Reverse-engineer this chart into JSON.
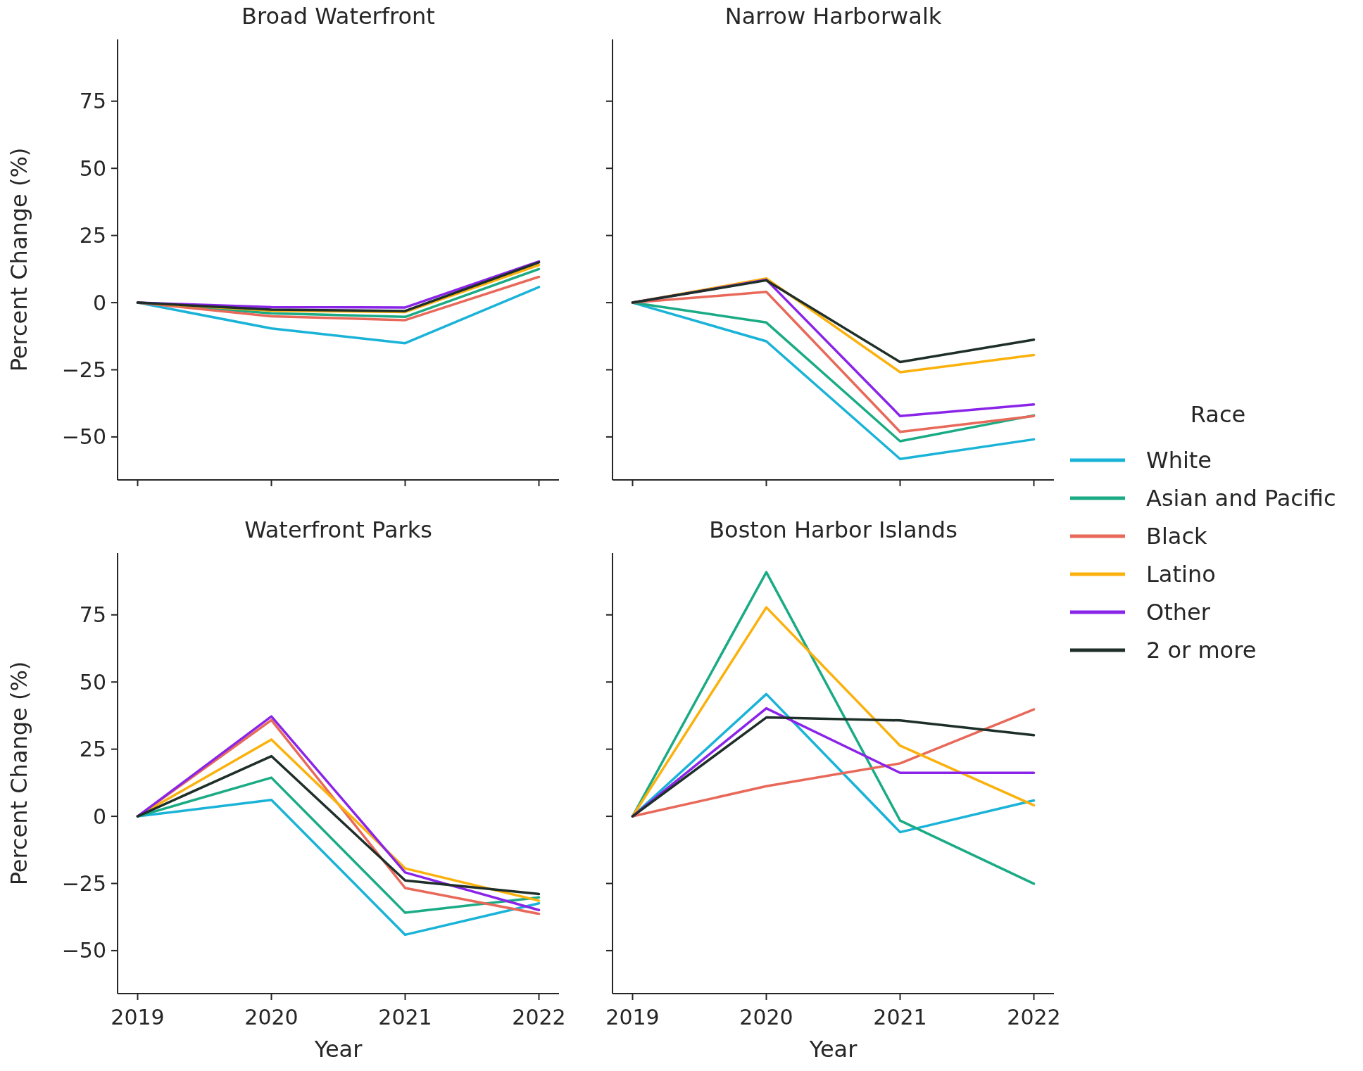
{
  "chart_data": [
    {
      "type": "line",
      "title": "Broad Waterfront",
      "ylabel": "Percent Change (%)",
      "x": [
        2019,
        2020,
        2021,
        2022
      ],
      "xlim": [
        2018.85,
        2022.15
      ],
      "xticks": [
        2019,
        2020,
        2021,
        2022
      ],
      "ylim": [
        -66,
        98
      ],
      "yticks": [
        -50,
        -25,
        0,
        25,
        50,
        75
      ],
      "tick_labels": "y",
      "grid": false,
      "series": [
        {
          "color": "#1ab3d8",
          "values": [
            0,
            -9.6,
            -15.1,
            5.8
          ]
        },
        {
          "color": "#1aab85",
          "values": [
            0,
            -4,
            -5.3,
            12.5
          ]
        },
        {
          "color": "#e8695a",
          "values": [
            0,
            -5.1,
            -6.5,
            9.6
          ]
        },
        {
          "color": "#fbb10c",
          "values": [
            0,
            -3,
            -3.5,
            14
          ]
        },
        {
          "color": "#8a24e8",
          "values": [
            0,
            -1.7,
            -1.8,
            15.3
          ]
        },
        {
          "color": "#1e2e28",
          "values": [
            0,
            -2.6,
            -3.1,
            15
          ]
        }
      ]
    },
    {
      "type": "line",
      "title": "Narrow Harborwalk",
      "x": [
        2019,
        2020,
        2021,
        2022
      ],
      "xlim": [
        2018.85,
        2022.15
      ],
      "xticks": [
        2019,
        2020,
        2021,
        2022
      ],
      "ylim": [
        -66,
        98
      ],
      "yticks": [
        -50,
        -25,
        0,
        25,
        50,
        75
      ],
      "tick_labels": false,
      "grid": false,
      "legend": "right",
      "legend_title": "Race",
      "series": [
        {
          "name": "White",
          "color": "#1ab3d8",
          "values": [
            0,
            -14.4,
            -58.2,
            -50.9
          ]
        },
        {
          "name": "Asian and Pacific",
          "color": "#1aab85",
          "values": [
            0,
            -7.4,
            -51.6,
            -42
          ]
        },
        {
          "name": "Black",
          "color": "#e8695a",
          "values": [
            0,
            4,
            -48.1,
            -42.2
          ]
        },
        {
          "name": "Latino",
          "color": "#fbb10c",
          "values": [
            0,
            9,
            -25.9,
            -19.5
          ]
        },
        {
          "name": "Other",
          "color": "#8a24e8",
          "values": [
            0,
            8.5,
            -42.2,
            -37.9
          ]
        },
        {
          "name": "2 or more",
          "color": "#1e2e28",
          "values": [
            0,
            8.3,
            -22.1,
            -13.8
          ]
        }
      ]
    },
    {
      "type": "line",
      "title": "Waterfront Parks",
      "xlabel": "Year",
      "ylabel": "Percent Change (%)",
      "x": [
        2019,
        2020,
        2021,
        2022
      ],
      "xlim": [
        2018.85,
        2022.15
      ],
      "xticks": [
        2019,
        2020,
        2021,
        2022
      ],
      "ylim": [
        -66,
        98
      ],
      "yticks": [
        -50,
        -25,
        0,
        25,
        50,
        75
      ],
      "grid": false,
      "series": [
        {
          "color": "#1ab3d8",
          "values": [
            0,
            6.1,
            -44.1,
            -32.4
          ]
        },
        {
          "color": "#1aab85",
          "values": [
            0,
            14.4,
            -35.9,
            -30.2
          ]
        },
        {
          "color": "#e8695a",
          "values": [
            0,
            35.8,
            -26.7,
            -36.3
          ]
        },
        {
          "color": "#fbb10c",
          "values": [
            0,
            28.6,
            -19.4,
            -31.4
          ]
        },
        {
          "color": "#8a24e8",
          "values": [
            0,
            37.2,
            -20.9,
            -34.9
          ]
        },
        {
          "color": "#1e2e28",
          "values": [
            0,
            22.4,
            -23.9,
            -28.9
          ]
        }
      ]
    },
    {
      "type": "line",
      "title": "Boston Harbor Islands",
      "xlabel": "Year",
      "x": [
        2019,
        2020,
        2021,
        2022
      ],
      "xlim": [
        2018.85,
        2022.15
      ],
      "xticks": [
        2019,
        2020,
        2021,
        2022
      ],
      "ylim": [
        -66,
        98
      ],
      "yticks": [
        -50,
        -25,
        0,
        25,
        50,
        75
      ],
      "tick_labels": "x",
      "grid": false,
      "series": [
        {
          "color": "#1ab3d8",
          "values": [
            0,
            45.5,
            -5.9,
            5.9
          ]
        },
        {
          "color": "#1aab85",
          "values": [
            0,
            90.9,
            -1.6,
            -25.1
          ]
        },
        {
          "color": "#e8695a",
          "values": [
            0,
            11.2,
            19.7,
            39.8
          ]
        },
        {
          "color": "#fbb10c",
          "values": [
            0,
            77.8,
            26.3,
            4.1
          ]
        },
        {
          "color": "#8a24e8",
          "values": [
            0,
            40.2,
            16.2,
            16.2
          ]
        },
        {
          "color": "#1e2e28",
          "values": [
            0,
            36.8,
            35.7,
            30.2
          ]
        }
      ]
    }
  ]
}
